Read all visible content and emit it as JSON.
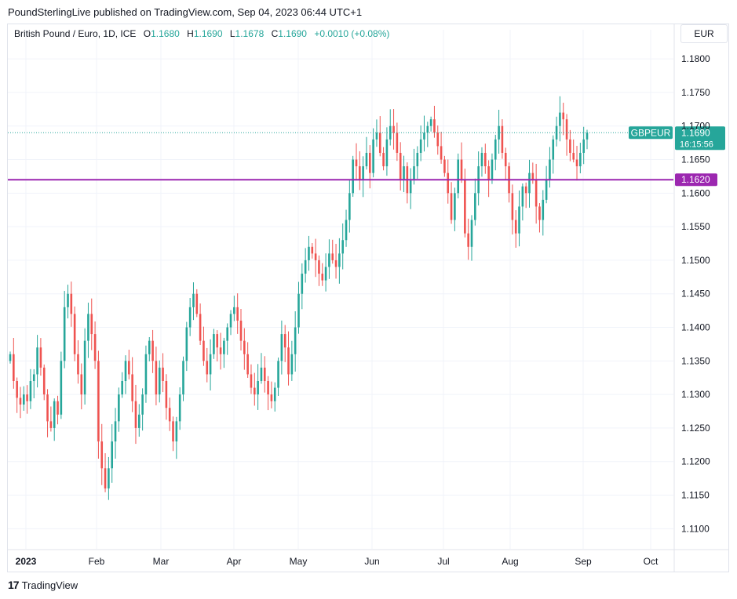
{
  "caption": "PoundSterlingLive published on TradingView.com, Sep 04, 2023 06:44 UTC+1",
  "legend": {
    "symbol": "British Pound / Euro, 1D, ICE",
    "o_label": "O",
    "o": "1.1680",
    "h_label": "H",
    "h": "1.1690",
    "l_label": "L",
    "l": "1.1678",
    "c_label": "C",
    "c": "1.1690",
    "change": "+0.0010 (+0.08%)"
  },
  "currency": "EUR",
  "footer": {
    "logo_mark": "17",
    "brand": "TradingView"
  },
  "colors": {
    "up": "#26a69a",
    "down": "#ef5350",
    "level": "#9c27b0",
    "grid": "#f0f3fa",
    "text": "#131722"
  },
  "chart_data": {
    "type": "candlestick",
    "symbol": "GBPEUR",
    "ylim": [
      1.107,
      1.182
    ],
    "y_ticks": [
      "1.1800",
      "1.1750",
      "1.1700",
      "1.1650",
      "1.1600",
      "1.1550",
      "1.1500",
      "1.1450",
      "1.1400",
      "1.1350",
      "1.1300",
      "1.1250",
      "1.1200",
      "1.1150",
      "1.1100"
    ],
    "x_ticks": [
      "2023",
      "Feb",
      "Mar",
      "Apr",
      "May",
      "Jun",
      "Jul",
      "Aug",
      "Sep",
      "Oct"
    ],
    "price_label": {
      "name": "GBPEUR",
      "value": "1.1690",
      "countdown": "16:15:56"
    },
    "horizontal_line": {
      "value": 1.162,
      "label": "1.1620"
    },
    "closes": [
      1.136,
      1.132,
      1.1295,
      1.1285,
      1.13,
      1.129,
      1.132,
      1.133,
      1.137,
      1.134,
      1.13,
      1.126,
      1.125,
      1.129,
      1.127,
      1.135,
      1.143,
      1.145,
      1.142,
      1.136,
      1.133,
      1.13,
      1.138,
      1.142,
      1.139,
      1.135,
      1.123,
      1.119,
      1.116,
      1.119,
      1.123,
      1.126,
      1.13,
      1.132,
      1.135,
      1.133,
      1.129,
      1.125,
      1.127,
      1.13,
      1.136,
      1.138,
      1.135,
      1.13,
      1.134,
      1.132,
      1.128,
      1.126,
      1.123,
      1.126,
      1.13,
      1.135,
      1.14,
      1.143,
      1.145,
      1.142,
      1.138,
      1.135,
      1.133,
      1.136,
      1.139,
      1.137,
      1.136,
      1.138,
      1.14,
      1.142,
      1.143,
      1.141,
      1.138,
      1.136,
      1.133,
      1.131,
      1.13,
      1.132,
      1.134,
      1.132,
      1.13,
      1.129,
      1.131,
      1.135,
      1.139,
      1.137,
      1.133,
      1.136,
      1.14,
      1.145,
      1.148,
      1.15,
      1.152,
      1.151,
      1.15,
      1.148,
      1.147,
      1.149,
      1.151,
      1.15,
      1.149,
      1.151,
      1.153,
      1.156,
      1.16,
      1.165,
      1.164,
      1.162,
      1.164,
      1.166,
      1.163,
      1.168,
      1.169,
      1.166,
      1.164,
      1.168,
      1.17,
      1.169,
      1.166,
      1.162,
      1.164,
      1.16,
      1.162,
      1.164,
      1.166,
      1.168,
      1.169,
      1.17,
      1.171,
      1.169,
      1.167,
      1.165,
      1.163,
      1.16,
      1.156,
      1.16,
      1.165,
      1.162,
      1.154,
      1.152,
      1.156,
      1.16,
      1.164,
      1.166,
      1.164,
      1.162,
      1.165,
      1.168,
      1.17,
      1.166,
      1.164,
      1.16,
      1.156,
      1.154,
      1.158,
      1.161,
      1.16,
      1.163,
      1.162,
      1.158,
      1.156,
      1.159,
      1.162,
      1.165,
      1.168,
      1.17,
      1.172,
      1.171,
      1.168,
      1.166,
      1.165,
      1.164,
      1.166,
      1.168,
      1.169
    ]
  }
}
